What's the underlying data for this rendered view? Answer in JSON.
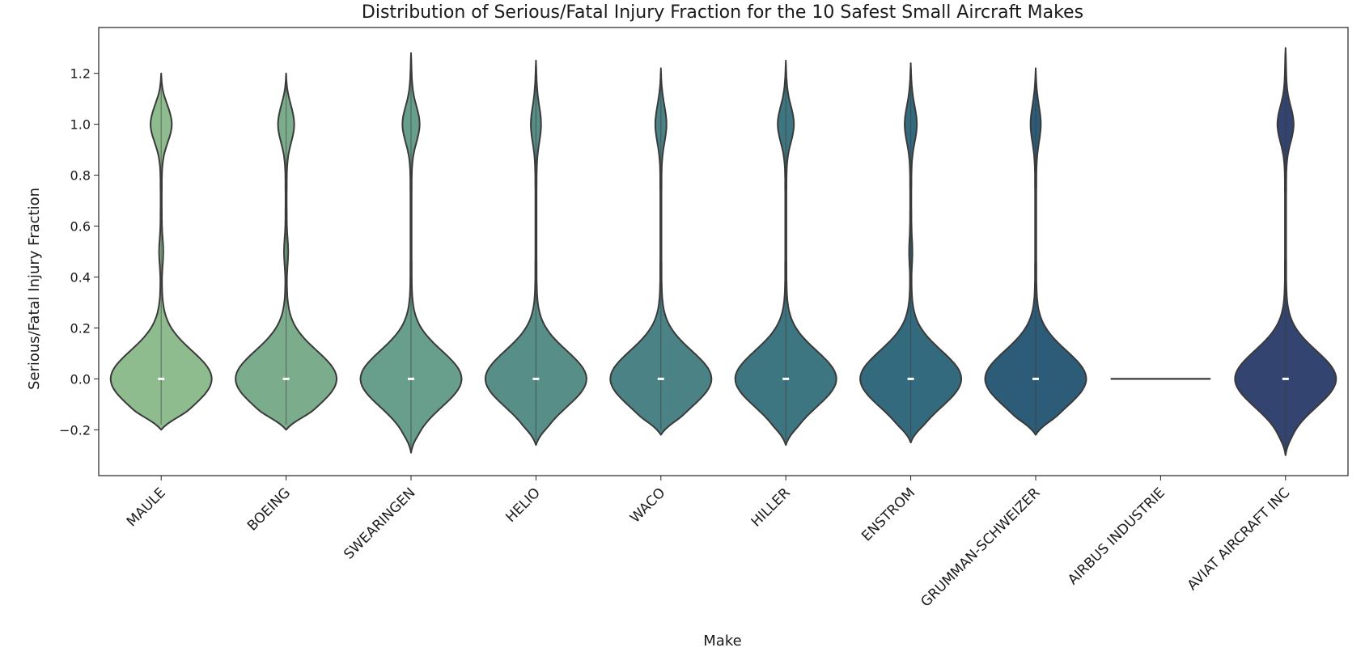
{
  "chart_data": {
    "type": "violin",
    "title": "Distribution of Serious/Fatal Injury Fraction for the 10 Safest Small Aircraft Makes",
    "xlabel": "Make",
    "ylabel": "Serious/Fatal Injury Fraction",
    "ylim": [
      -0.38,
      1.38
    ],
    "yticks": [
      -0.2,
      0.0,
      0.2,
      0.4,
      0.6,
      0.8,
      1.0,
      1.2
    ],
    "ytick_labels": [
      "−0.2",
      "0.0",
      "0.2",
      "0.4",
      "0.6",
      "0.8",
      "1.0",
      "1.2"
    ],
    "grid": false,
    "categories": [
      "MAULE",
      "BOEING",
      "SWEARINGEN",
      "HELIO",
      "WACO",
      "HILLER",
      "ENSTROM",
      "GRUMMAN-SCHWEIZER",
      "AIRBUS INDUSTRIE",
      "AVIAT AIRCRAFT INC"
    ],
    "violins": [
      {
        "make": "MAULE",
        "color": "#8fbc8f",
        "min": -0.2,
        "max": 1.2,
        "median": 0.0,
        "width_at_zero": 1.0,
        "upper_width": 0.2,
        "mid_bump": 0.5
      },
      {
        "make": "BOEING",
        "color": "#7bac8c",
        "min": -0.2,
        "max": 1.2,
        "median": 0.0,
        "width_at_zero": 1.0,
        "upper_width": 0.15,
        "mid_bump": 0.5
      },
      {
        "make": "SWEARINGEN",
        "color": "#679e8c",
        "min": -0.29,
        "max": 1.28,
        "median": 0.0,
        "width_at_zero": 1.0,
        "upper_width": 0.16,
        "mid_bump": 0.0
      },
      {
        "make": "HELIO",
        "color": "#578e88",
        "min": -0.26,
        "max": 1.25,
        "median": 0.0,
        "width_at_zero": 1.0,
        "upper_width": 0.09,
        "mid_bump": 0.0
      },
      {
        "make": "WACO",
        "color": "#4a8285",
        "min": -0.22,
        "max": 1.22,
        "median": 0.0,
        "width_at_zero": 1.0,
        "upper_width": 0.1,
        "mid_bump": 0.0
      },
      {
        "make": "HILLER",
        "color": "#3d7680",
        "min": -0.26,
        "max": 1.25,
        "median": 0.0,
        "width_at_zero": 1.0,
        "upper_width": 0.15,
        "mid_bump": 0.0
      },
      {
        "make": "ENSTROM",
        "color": "#336a7d",
        "min": -0.25,
        "max": 1.24,
        "median": 0.0,
        "width_at_zero": 1.0,
        "upper_width": 0.11,
        "mid_bump": 0.35
      },
      {
        "make": "GRUMMAN-SCHWEIZER",
        "color": "#2c5c78",
        "min": -0.22,
        "max": 1.22,
        "median": 0.0,
        "width_at_zero": 1.0,
        "upper_width": 0.09,
        "mid_bump": 0.0
      },
      {
        "make": "AIRBUS INDUSTRIE",
        "color": "#3a3a3a",
        "min": 0.0,
        "max": 0.0,
        "median": 0.0,
        "width_at_zero": 1.0,
        "degenerate": true
      },
      {
        "make": "AVIAT AIRCRAFT INC",
        "color": "#344470",
        "min": -0.3,
        "max": 1.3,
        "median": 0.0,
        "width_at_zero": 1.0,
        "upper_width": 0.15,
        "mid_bump": 0.0
      }
    ]
  }
}
